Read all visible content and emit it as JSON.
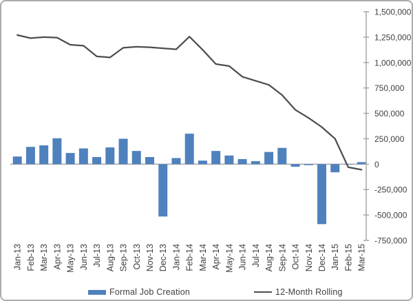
{
  "chart_data": {
    "type": "bar",
    "subtype": "bar-and-line-combo",
    "title": "",
    "xlabel": "",
    "ylabel": "",
    "categories": [
      "Jan-13",
      "Feb-13",
      "Mar-13",
      "Apr-13",
      "May-13",
      "Jun-13",
      "Jul-13",
      "Aug-13",
      "Sep-13",
      "Oct-13",
      "Nov-13",
      "Dec-13",
      "Jan-14",
      "Feb-14",
      "Mar-14",
      "Apr-14",
      "May-14",
      "Jun-14",
      "Jul-14",
      "Aug-14",
      "Sep-14",
      "Oct-14",
      "Nov-14",
      "Dec-14",
      "Jan-15",
      "Feb-15",
      "Mar-15"
    ],
    "series": [
      {
        "name": "Formal Job Creation",
        "type": "bar",
        "color": "#4F81BD",
        "values": [
          75000,
          170000,
          185000,
          255000,
          110000,
          155000,
          70000,
          165000,
          250000,
          130000,
          70000,
          -515000,
          60000,
          300000,
          35000,
          130000,
          85000,
          50000,
          30000,
          120000,
          160000,
          -25000,
          -10000,
          -590000,
          -80000,
          -5000,
          20000
        ]
      },
      {
        "name": "12-Month Rolling",
        "type": "line",
        "color": "#4d4d4d",
        "values": [
          1270000,
          1240000,
          1250000,
          1245000,
          1175000,
          1165000,
          1060000,
          1050000,
          1145000,
          1155000,
          1150000,
          1140000,
          1130000,
          1255000,
          1125000,
          985000,
          965000,
          860000,
          820000,
          780000,
          680000,
          535000,
          455000,
          365000,
          250000,
          -30000,
          -55000
        ]
      }
    ],
    "y_axis": {
      "side": "right",
      "min": -750000,
      "max": 1500000,
      "tick_interval": 250000,
      "tick_labels": [
        "1,500,000",
        "1,250,000",
        "1,000,000",
        "750,000",
        "500,000",
        "250,000",
        "0",
        "-250,000",
        "-500,000",
        "-750,000"
      ],
      "axis_color": "#a6a6a6"
    },
    "x_axis": {
      "label_rotation": -90,
      "zero_gridline_color": "#a6a6a6"
    },
    "grid": "zero-line-only",
    "legend_position": "bottom"
  }
}
